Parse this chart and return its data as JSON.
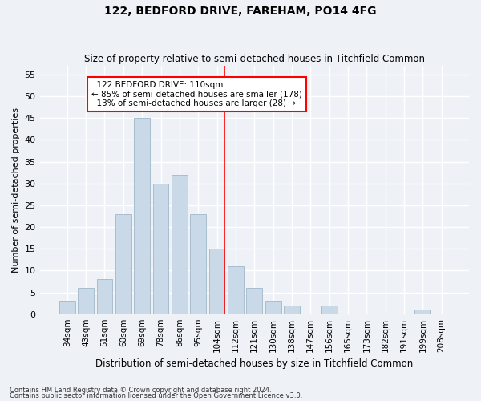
{
  "title": "122, BEDFORD DRIVE, FAREHAM, PO14 4FG",
  "subtitle": "Size of property relative to semi-detached houses in Titchfield Common",
  "xlabel": "Distribution of semi-detached houses by size in Titchfield Common",
  "ylabel": "Number of semi-detached properties",
  "categories": [
    "34sqm",
    "43sqm",
    "51sqm",
    "60sqm",
    "69sqm",
    "78sqm",
    "86sqm",
    "95sqm",
    "104sqm",
    "112sqm",
    "121sqm",
    "130sqm",
    "138sqm",
    "147sqm",
    "156sqm",
    "165sqm",
    "173sqm",
    "182sqm",
    "191sqm",
    "199sqm",
    "208sqm"
  ],
  "values": [
    3,
    6,
    8,
    23,
    45,
    30,
    32,
    23,
    15,
    11,
    6,
    3,
    2,
    0,
    2,
    0,
    0,
    0,
    0,
    1,
    0
  ],
  "bar_color": "#c9d9e8",
  "bar_edge_color": "#a8bece",
  "ylim": [
    0,
    57
  ],
  "yticks": [
    0,
    5,
    10,
    15,
    20,
    25,
    30,
    35,
    40,
    45,
    50,
    55
  ],
  "property_label": "122 BEDFORD DRIVE: 110sqm",
  "pct_smaller": 85,
  "n_smaller": 178,
  "pct_larger": 13,
  "n_larger": 28,
  "background_color": "#eef2f7",
  "grid_color": "#ffffff",
  "footer1": "Contains HM Land Registry data © Crown copyright and database right 2024.",
  "footer2": "Contains public sector information licensed under the Open Government Licence v3.0."
}
